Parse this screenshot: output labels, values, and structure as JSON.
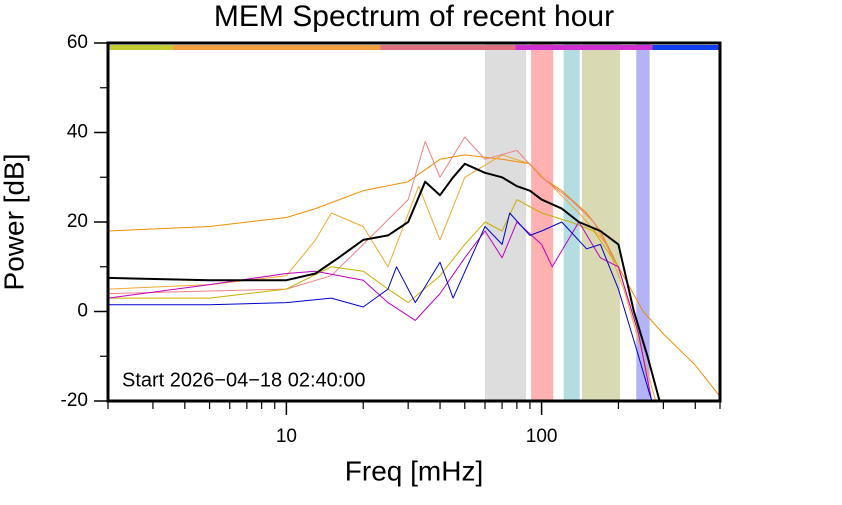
{
  "chart_data": {
    "type": "line",
    "title": "MEM Spectrum of recent hour",
    "x_label": "Freq [mHz]",
    "y_label": "Power [dB]",
    "annotation": "Start 2026−04−18 02:40:00",
    "log_x": true,
    "xlim": [
      2,
      500
    ],
    "xticks": [
      10,
      100
    ],
    "xminorticks": [
      2,
      3,
      4,
      5,
      6,
      7,
      8,
      9,
      20,
      30,
      40,
      50,
      60,
      70,
      80,
      90,
      200,
      300,
      400,
      500
    ],
    "ylim": [
      -20,
      60
    ],
    "yticks": [
      -20,
      0,
      20,
      40,
      60
    ],
    "yminorticks": [
      -10,
      10,
      30,
      50
    ],
    "bands": [
      {
        "from": 60,
        "to": 87,
        "color": "#dddddd"
      },
      {
        "from": 91,
        "to": 111,
        "color": "#ffb0b0"
      },
      {
        "from": 122,
        "to": 141,
        "color": "#b3dde0"
      },
      {
        "from": 144,
        "to": 203,
        "color": "#d9d9b3"
      },
      {
        "from": 235,
        "to": 265,
        "color": "#b3b3f8"
      }
    ],
    "top_bar": [
      {
        "from": 2,
        "to": 3.6,
        "color": "#c4cc30"
      },
      {
        "from": 3.6,
        "to": 23.3,
        "color": "#f0a040"
      },
      {
        "from": 23.3,
        "to": 79,
        "color": "#e07080"
      },
      {
        "from": 79,
        "to": 272,
        "color": "#d030d0"
      },
      {
        "from": 272,
        "to": 500,
        "color": "#1040f0"
      }
    ],
    "series": [
      {
        "color": "#f08c00",
        "x": [
          2,
          5,
          10,
          13,
          20,
          30,
          40,
          50,
          70,
          90,
          100,
          120,
          150,
          170,
          200,
          250,
          300,
          400,
          500
        ],
        "values": [
          18,
          19,
          21,
          23,
          27,
          29,
          34,
          35,
          34,
          33,
          30,
          27,
          22,
          18,
          10,
          0,
          -5,
          -12,
          -19
        ]
      },
      {
        "color": "#f0a830",
        "x": [
          2,
          5,
          10,
          13,
          15,
          20,
          25,
          33,
          40,
          50,
          70,
          90,
          110,
          140,
          180,
          210,
          250,
          280
        ],
        "values": [
          5,
          6,
          8,
          16,
          22,
          19,
          10,
          28,
          16,
          30,
          35,
          33,
          28,
          22,
          15,
          5,
          -10,
          -20
        ]
      },
      {
        "color": "#f08080",
        "x": [
          2,
          10,
          15,
          20,
          30,
          35,
          40,
          50,
          60,
          80,
          100,
          130,
          160,
          200,
          240,
          270
        ],
        "values": [
          4,
          5,
          8,
          15,
          25,
          38,
          30,
          39,
          34,
          36,
          30,
          25,
          20,
          10,
          -5,
          -20
        ]
      },
      {
        "color": "#c8b000",
        "x": [
          2,
          5,
          10,
          15,
          20,
          25,
          30,
          40,
          50,
          60,
          70,
          80,
          100,
          130,
          160,
          200,
          240,
          270
        ],
        "values": [
          3,
          3,
          5,
          10,
          9,
          5,
          2,
          8,
          15,
          20,
          18,
          25,
          22,
          20,
          18,
          10,
          -5,
          -20
        ]
      },
      {
        "color": "#c000c0",
        "x": [
          2,
          5,
          10,
          13,
          20,
          25,
          32,
          40,
          50,
          60,
          70,
          80,
          100,
          110,
          140,
          170,
          200,
          240,
          270
        ],
        "values": [
          3,
          6,
          8.5,
          9,
          7,
          2,
          -2,
          4,
          12,
          18,
          12,
          20,
          15,
          10,
          20,
          12,
          10,
          -5,
          -20
        ]
      },
      {
        "color": "#0000d0",
        "x": [
          2,
          5,
          10,
          15,
          20,
          25,
          27,
          32,
          40,
          45,
          60,
          70,
          75,
          90,
          100,
          120,
          150,
          170,
          200,
          240,
          270
        ],
        "values": [
          1.5,
          1.5,
          2,
          3,
          1,
          5,
          10,
          2,
          11,
          3,
          19,
          15,
          22,
          17,
          18,
          20,
          14,
          15,
          5,
          -10,
          -20
        ]
      },
      {
        "color": "#000000",
        "x": [
          2,
          5,
          10,
          13,
          16,
          20,
          25,
          30,
          35,
          40,
          45,
          50,
          60,
          70,
          80,
          90,
          100,
          120,
          140,
          170,
          200,
          230,
          260,
          290
        ],
        "values": [
          7.5,
          7,
          7,
          8.5,
          12,
          16,
          17,
          20,
          29,
          26,
          30,
          33,
          31,
          30,
          28,
          27,
          25,
          23,
          20,
          18,
          15,
          0,
          -10,
          -20
        ]
      }
    ]
  }
}
